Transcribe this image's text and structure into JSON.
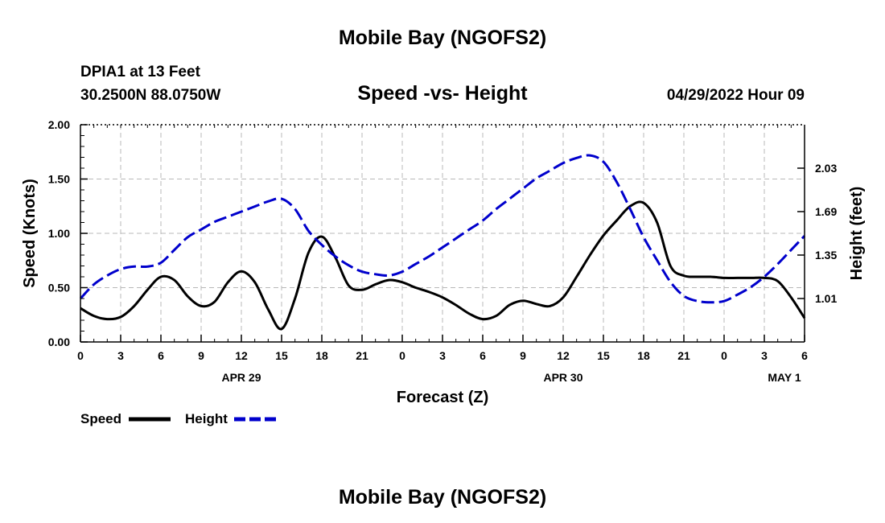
{
  "header": {
    "title": "Mobile Bay (NGOFS2)",
    "station": "DPIA1 at 13 Feet",
    "coords": "30.2500N  88.0750W",
    "chart_title": "Speed -vs- Height",
    "datetime": "04/29/2022 Hour 09"
  },
  "footer": {
    "title": "Mobile Bay (NGOFS2)"
  },
  "legend": {
    "speed_label": "Speed",
    "height_label": "Height"
  },
  "colors": {
    "speed": "#000000",
    "height": "#0000cc",
    "grid": "#b8b8b8"
  },
  "chart_data": {
    "type": "line",
    "title": "Speed -vs- Height",
    "xlabel": "Forecast (Z)",
    "ylabel": "Speed (Knots)",
    "y2label": "Height (feet)",
    "x_unit": "hours from Apr 29 00Z",
    "xlim": [
      0,
      54
    ],
    "ylim": [
      0,
      2.0
    ],
    "y2lim": [
      0.67,
      2.37
    ],
    "x_ticks": [
      0,
      3,
      6,
      9,
      12,
      15,
      18,
      21,
      24,
      27,
      30,
      33,
      36,
      39,
      42,
      45,
      48,
      51,
      54
    ],
    "x_tick_labels": [
      "0",
      "3",
      "6",
      "9",
      "12",
      "15",
      "18",
      "21",
      "0",
      "3",
      "6",
      "9",
      "12",
      "15",
      "18",
      "21",
      "0",
      "3",
      "6"
    ],
    "date_labels": [
      {
        "x": 12,
        "label": "APR 29"
      },
      {
        "x": 36,
        "label": "APR 30"
      },
      {
        "x": 52.5,
        "label": "MAY 1"
      }
    ],
    "y_ticks": [
      0.0,
      0.5,
      1.0,
      1.5,
      2.0
    ],
    "y_tick_labels": [
      "0.00",
      "0.50",
      "1.00",
      "1.50",
      "2.00"
    ],
    "y2_ticks": [
      1.01,
      1.35,
      1.69,
      2.03
    ],
    "y2_tick_labels": [
      "1.01",
      "1.35",
      "1.69",
      "2.03"
    ],
    "series": [
      {
        "name": "Speed",
        "axis": "left",
        "style": "solid",
        "x": [
          0,
          1,
          2,
          3,
          4,
          5,
          6,
          7,
          8,
          9,
          10,
          11,
          12,
          13,
          14,
          15,
          16,
          17,
          18,
          19,
          20,
          21,
          22,
          23,
          24,
          25,
          26,
          27,
          28,
          29,
          30,
          31,
          32,
          33,
          34,
          35,
          36,
          37,
          38,
          39,
          40,
          41,
          42,
          43,
          44,
          45,
          46,
          47,
          48,
          49,
          50,
          51,
          52,
          53,
          54
        ],
        "values": [
          0.31,
          0.24,
          0.21,
          0.23,
          0.33,
          0.48,
          0.6,
          0.57,
          0.42,
          0.33,
          0.37,
          0.55,
          0.65,
          0.55,
          0.3,
          0.12,
          0.4,
          0.82,
          0.97,
          0.78,
          0.52,
          0.48,
          0.53,
          0.57,
          0.55,
          0.5,
          0.46,
          0.41,
          0.34,
          0.26,
          0.21,
          0.24,
          0.34,
          0.38,
          0.35,
          0.33,
          0.41,
          0.6,
          0.8,
          0.98,
          1.12,
          1.25,
          1.28,
          1.1,
          0.7,
          0.61,
          0.6,
          0.6,
          0.59,
          0.59,
          0.59,
          0.59,
          0.56,
          0.41,
          0.22
        ]
      },
      {
        "name": "Height",
        "axis": "right",
        "style": "dashed",
        "x": [
          0,
          1,
          2,
          3,
          4,
          5,
          6,
          7,
          8,
          9,
          10,
          11,
          12,
          13,
          14,
          15,
          16,
          17,
          18,
          19,
          20,
          21,
          22,
          23,
          24,
          25,
          26,
          27,
          28,
          29,
          30,
          31,
          32,
          33,
          34,
          35,
          36,
          37,
          38,
          39,
          40,
          41,
          42,
          43,
          44,
          45,
          46,
          47,
          48,
          49,
          50,
          51,
          52,
          53,
          54
        ],
        "values": [
          1.01,
          1.12,
          1.19,
          1.24,
          1.26,
          1.26,
          1.29,
          1.39,
          1.49,
          1.55,
          1.61,
          1.65,
          1.69,
          1.73,
          1.77,
          1.79,
          1.71,
          1.54,
          1.43,
          1.34,
          1.27,
          1.22,
          1.2,
          1.19,
          1.22,
          1.28,
          1.34,
          1.41,
          1.48,
          1.55,
          1.62,
          1.71,
          1.79,
          1.87,
          1.95,
          2.01,
          2.07,
          2.11,
          2.13,
          2.08,
          1.92,
          1.71,
          1.49,
          1.31,
          1.14,
          1.03,
          0.99,
          0.98,
          0.99,
          1.04,
          1.1,
          1.18,
          1.28,
          1.39,
          1.5
        ]
      }
    ]
  }
}
